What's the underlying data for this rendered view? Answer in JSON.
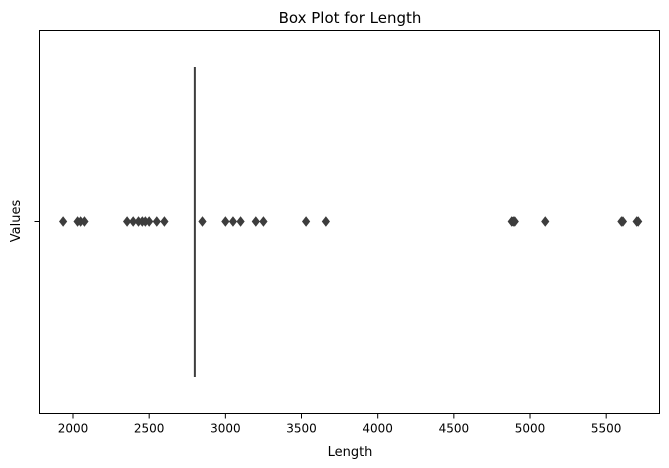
{
  "chart_data": {
    "type": "box",
    "title": "Box Plot for Length",
    "xlabel": "Length",
    "ylabel": "Values",
    "xlim": [
      1780,
      5850
    ],
    "xticks": [
      2000,
      2500,
      3000,
      3500,
      4000,
      4500,
      5000,
      5500
    ],
    "y_tick_labels": [
      ""
    ],
    "grid": false,
    "series": [
      {
        "box": {
          "whisker_low": 2800,
          "q1": 2800,
          "median": 2800,
          "q3": 2800,
          "whisker_high": 2800
        },
        "outliers": [
          1935,
          2030,
          2050,
          2075,
          2355,
          2395,
          2430,
          2455,
          2475,
          2500,
          2550,
          2600,
          2850,
          3000,
          3050,
          3100,
          3200,
          3250,
          3530,
          3660,
          4880,
          4890,
          4900,
          5100,
          5600,
          5610,
          5700,
          5710
        ]
      }
    ],
    "colors": {
      "outlier": "#3d3d3d",
      "box_line": "#3d3d3d",
      "axes": "#000000"
    }
  }
}
